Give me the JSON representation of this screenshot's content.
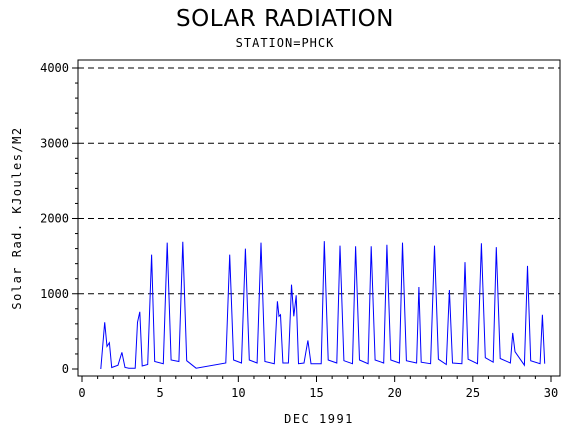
{
  "chart_data": {
    "type": "line",
    "title": "SOLAR RADIATION",
    "subtitle": "STATION=PHCK",
    "xlabel": "DEC 1991",
    "ylabel": "Solar Rad. KJoules/M2",
    "xlim": [
      0,
      30
    ],
    "ylim": [
      0,
      4000
    ],
    "x_ticks": [
      0,
      5,
      10,
      15,
      20,
      25,
      30
    ],
    "y_ticks": [
      0,
      1000,
      2000,
      3000,
      4000
    ],
    "y_grid_dashed": [
      1000,
      2000,
      3000,
      4000
    ],
    "line_color": "#0000ff",
    "series": [
      {
        "x": [
          1.2,
          1.45,
          1.6,
          1.75,
          1.9,
          2.3,
          2.55,
          2.75,
          3.0,
          3.4,
          3.55,
          3.7,
          3.85,
          4.2,
          4.45,
          4.65,
          5.2,
          5.45,
          5.7,
          6.2,
          6.45,
          6.7,
          7.3,
          9.2,
          9.45,
          9.7,
          10.2,
          10.45,
          10.7,
          11.2,
          11.45,
          11.7,
          12.3,
          12.5,
          12.6,
          12.7,
          12.85,
          13.2,
          13.4,
          13.55,
          13.7,
          13.85,
          14.2,
          14.45,
          14.65,
          15.3,
          15.5,
          15.75,
          16.3,
          16.5,
          16.75,
          17.3,
          17.5,
          17.75,
          18.3,
          18.5,
          18.75,
          19.3,
          19.5,
          19.75,
          20.3,
          20.5,
          20.75,
          21.4,
          21.55,
          21.7,
          22.3,
          22.55,
          22.8,
          23.3,
          23.5,
          23.7,
          24.3,
          24.5,
          24.7,
          25.3,
          25.55,
          25.8,
          26.3,
          26.5,
          26.75,
          27.4,
          27.55,
          27.7,
          28.3,
          28.5,
          28.7,
          29.3,
          29.45,
          29.6
        ],
        "y": [
          0,
          620,
          300,
          350,
          20,
          50,
          220,
          20,
          10,
          10,
          620,
          760,
          40,
          60,
          1520,
          100,
          70,
          1680,
          120,
          100,
          1690,
          110,
          10,
          80,
          1520,
          120,
          80,
          1600,
          120,
          80,
          1680,
          100,
          70,
          900,
          700,
          720,
          80,
          80,
          1120,
          700,
          980,
          70,
          80,
          380,
          70,
          70,
          1700,
          120,
          80,
          1640,
          110,
          70,
          1630,
          120,
          70,
          1630,
          120,
          80,
          1650,
          120,
          80,
          1680,
          110,
          80,
          1090,
          90,
          70,
          1640,
          130,
          60,
          1050,
          80,
          70,
          1420,
          130,
          70,
          1670,
          150,
          90,
          1620,
          140,
          80,
          480,
          230,
          50,
          1370,
          110,
          70,
          720,
          70
        ]
      }
    ]
  }
}
